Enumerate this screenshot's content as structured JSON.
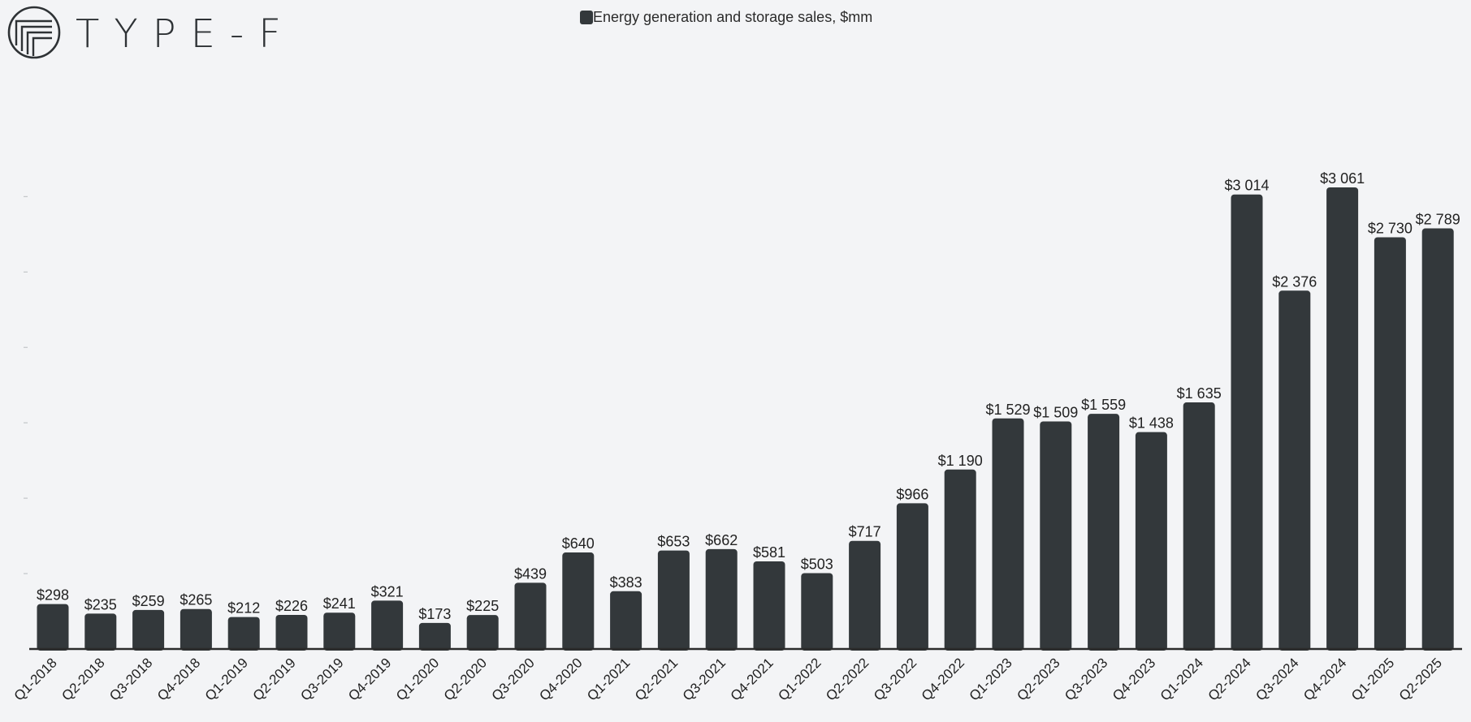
{
  "brand": {
    "logo_text": "TYPE-F"
  },
  "chart_data": {
    "type": "bar",
    "title": "",
    "legend_position": "top-center",
    "legend": [
      "Energy generation and storage sales, $mm"
    ],
    "series": [
      {
        "name": "Energy generation and storage sales, $mm",
        "color": "#33383b",
        "values": [
          298,
          235,
          259,
          265,
          212,
          226,
          241,
          321,
          173,
          225,
          439,
          640,
          383,
          653,
          662,
          581,
          503,
          717,
          966,
          1190,
          1529,
          1509,
          1559,
          1438,
          1635,
          3014,
          2376,
          3061,
          2730,
          2789
        ],
        "data_labels": [
          "$298",
          "$235",
          "$259",
          "$265",
          "$212",
          "$226",
          "$241",
          "$321",
          "$173",
          "$225",
          "$439",
          "$640",
          "$383",
          "$653",
          "$662",
          "$581",
          "$503",
          "$717",
          "$966",
          "$1 190",
          "$1 529",
          "$1 509",
          "$1 559",
          "$1 438",
          "$1 635",
          "$3 014",
          "$2 376",
          "$3 061",
          "$2 730",
          "$2 789"
        ]
      }
    ],
    "categories": [
      "Q1-2018",
      "Q2-2018",
      "Q3-2018",
      "Q4-2018",
      "Q1-2019",
      "Q2-2019",
      "Q3-2019",
      "Q4-2019",
      "Q1-2020",
      "Q2-2020",
      "Q3-2020",
      "Q4-2020",
      "Q1-2021",
      "Q2-2021",
      "Q3-2021",
      "Q4-2021",
      "Q1-2022",
      "Q2-2022",
      "Q3-2022",
      "Q4-2022",
      "Q1-2023",
      "Q2-2023",
      "Q3-2023",
      "Q4-2023",
      "Q1-2024",
      "Q2-2024",
      "Q3-2024",
      "Q4-2024",
      "Q1-2025",
      "Q2-2025"
    ],
    "xlabel": "",
    "ylabel": "",
    "ylim": [
      0,
      3000
    ],
    "grid": false,
    "colors": {
      "bar": "#33383b",
      "axis": "#2b2b2b",
      "background": "#f3f4f6",
      "text": "#222222"
    }
  }
}
